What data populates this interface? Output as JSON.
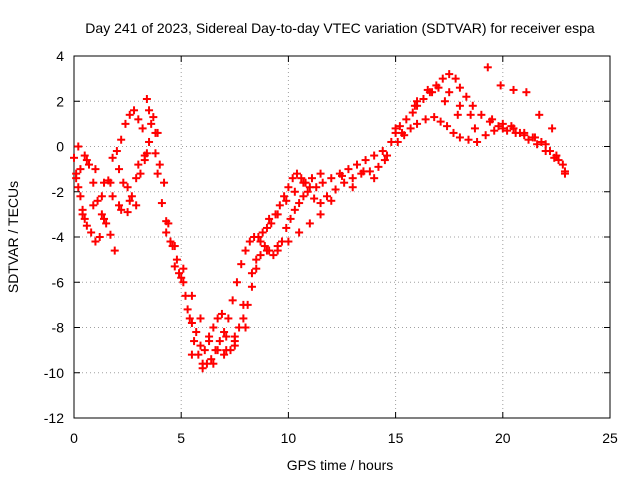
{
  "chart_data": {
    "type": "scatter",
    "title": "Day 241 of 2023, Sidereal Day-to-day VTEC variation (SDTVAR) for receiver espa",
    "xlabel": "GPS time / hours",
    "ylabel": "SDTVAR / TECUs",
    "xlim": [
      0,
      25
    ],
    "ylim": [
      -12,
      4
    ],
    "xticks": [
      0,
      5,
      10,
      15,
      20,
      25
    ],
    "yticks": [
      -12,
      -10,
      -8,
      -6,
      -4,
      -2,
      0,
      2,
      4
    ],
    "grid": true,
    "legend": "none",
    "marker": "+",
    "color": "#ff0000",
    "series": [
      {
        "name": "SDTVAR",
        "x": [
          0.0,
          0.1,
          0.2,
          0.3,
          0.4,
          0.5,
          0.6,
          0.8,
          1.0,
          1.2,
          1.4,
          1.6,
          1.8,
          2.0,
          2.2,
          2.4,
          2.6,
          2.8,
          3.0,
          3.2,
          3.4,
          3.6,
          3.8,
          4.0,
          4.2,
          4.4,
          4.6,
          4.8,
          5.0,
          5.2,
          5.4,
          5.6,
          5.8,
          6.0,
          6.2,
          6.4,
          6.6,
          6.8,
          7.0,
          7.2,
          7.4,
          7.6,
          7.8,
          8.0,
          8.2,
          8.4,
          8.6,
          8.8,
          9.0,
          9.2,
          9.4,
          9.6,
          9.8,
          10.0,
          10.2,
          10.4,
          10.6,
          10.8,
          11.0,
          11.3,
          11.6,
          12.0,
          12.4,
          12.8,
          13.2,
          13.6,
          14.0,
          14.4,
          14.8,
          15.0,
          15.2,
          15.5,
          15.8,
          16.0,
          16.3,
          16.6,
          16.9,
          17.2,
          17.5,
          17.8,
          18.0,
          18.3,
          18.6,
          19.0,
          19.4,
          19.8,
          20.2,
          20.6,
          21.0,
          21.4,
          21.8,
          22.2,
          22.6,
          22.9,
          0.1,
          0.3,
          0.5,
          0.7,
          0.9,
          1.1,
          1.3,
          1.5,
          1.7,
          1.9,
          2.1,
          2.3,
          2.5,
          2.7,
          2.9,
          3.1,
          3.3,
          3.5,
          3.7,
          3.9,
          4.1,
          4.3,
          4.5,
          4.7,
          4.9,
          5.1,
          5.3,
          5.5,
          5.7,
          5.9,
          6.1,
          6.3,
          6.5,
          6.7,
          6.9,
          7.1,
          7.3,
          7.5,
          7.7,
          7.9,
          8.1,
          8.3,
          8.5,
          8.7,
          8.9,
          9.1,
          9.3,
          9.5,
          9.7,
          9.9,
          10.1,
          10.3,
          10.5,
          10.7,
          10.9,
          11.2,
          11.5,
          11.8,
          12.2,
          12.6,
          13.0,
          13.4,
          13.8,
          14.2,
          14.6,
          15.1,
          15.4,
          15.7,
          16.0,
          16.4,
          16.8,
          17.1,
          17.4,
          17.7,
          18.0,
          18.4,
          18.8,
          19.2,
          19.6,
          20.0,
          20.4,
          20.8,
          21.2,
          21.6,
          22.0,
          22.4,
          22.8,
          0.2,
          0.6,
          1.0,
          1.4,
          1.8,
          2.2,
          2.6,
          3.0,
          3.4,
          3.8,
          5.5,
          6.0,
          6.5,
          7.0,
          7.5,
          8.0,
          8.5,
          9.0,
          9.5,
          10.0,
          10.5,
          11.0,
          11.5,
          12.0,
          13.0,
          14.0,
          15.0,
          16.0,
          16.5,
          17.0,
          17.5,
          18.0,
          18.5,
          19.5,
          20.0,
          20.5,
          21.0,
          21.5,
          22.0,
          22.5,
          0.4,
          0.9,
          1.3,
          1.7,
          2.1,
          2.5,
          2.9,
          3.3,
          3.5,
          3.9,
          4.3,
          4.7,
          5.1,
          5.5,
          5.9,
          6.3,
          6.7,
          7.1,
          7.5,
          7.9,
          8.3,
          8.7,
          9.1,
          9.5,
          9.9,
          10.3,
          10.7,
          11.1,
          11.5,
          12.5,
          13.5,
          14.5,
          15.3,
          15.9,
          16.7,
          17.3,
          17.9,
          18.7,
          19.3,
          19.9,
          20.5,
          21.1,
          21.7,
          22.3,
          22.9
        ],
        "y": [
          -0.5,
          -1.2,
          -1.8,
          -2.2,
          -2.8,
          -3.2,
          -3.5,
          -3.8,
          -4.2,
          -4.0,
          -3.2,
          -1.5,
          -0.5,
          -0.2,
          0.3,
          1.0,
          1.4,
          1.6,
          1.2,
          0.8,
          2.1,
          1.0,
          -0.3,
          -0.8,
          -1.6,
          -3.4,
          -4.4,
          -5.0,
          -5.8,
          -6.6,
          -7.6,
          -8.6,
          -9.2,
          -9.8,
          -9.6,
          -9.4,
          -9.0,
          -8.6,
          -8.2,
          -7.6,
          -6.8,
          -6.0,
          -5.2,
          -4.6,
          -4.2,
          -4.0,
          -4.0,
          -3.8,
          -3.6,
          -3.4,
          -3.0,
          -2.6,
          -2.2,
          -1.8,
          -1.4,
          -1.2,
          -1.4,
          -1.6,
          -1.8,
          -1.8,
          -1.6,
          -1.4,
          -1.2,
          -1.0,
          -0.8,
          -0.6,
          -0.4,
          -0.2,
          0.2,
          0.6,
          0.9,
          1.2,
          1.5,
          1.8,
          2.1,
          2.4,
          2.7,
          3.0,
          3.2,
          3.0,
          2.6,
          2.2,
          1.8,
          1.4,
          1.1,
          0.9,
          0.7,
          0.6,
          0.5,
          0.4,
          0.2,
          -0.2,
          -0.6,
          -1.1,
          -1.4,
          -1.0,
          -0.4,
          -0.8,
          -1.6,
          -2.4,
          -3.0,
          -3.4,
          -3.9,
          -4.6,
          -1.0,
          -1.6,
          -1.8,
          -2.2,
          -2.6,
          -1.2,
          -0.6,
          0.2,
          1.3,
          0.6,
          -2.5,
          -3.3,
          -4.2,
          -5.3,
          -5.6,
          -6.0,
          -7.2,
          -7.8,
          -8.2,
          -8.8,
          -9.0,
          -8.6,
          -8.0,
          -7.6,
          -7.4,
          -8.4,
          -9.0,
          -8.6,
          -8.0,
          -7.6,
          -7.0,
          -6.2,
          -5.4,
          -4.8,
          -4.4,
          -4.6,
          -4.8,
          -4.6,
          -4.2,
          -3.6,
          -3.2,
          -2.8,
          -2.5,
          -2.2,
          -2.0,
          -2.3,
          -2.5,
          -2.2,
          -1.9,
          -1.6,
          -1.4,
          -1.2,
          -1.1,
          -0.9,
          -0.4,
          0.2,
          0.5,
          0.8,
          1.0,
          1.2,
          1.3,
          1.1,
          0.9,
          0.6,
          0.4,
          0.3,
          0.2,
          0.5,
          0.7,
          0.8,
          0.9,
          0.6,
          0.3,
          0.1,
          -0.2,
          -0.5,
          -0.8,
          0.0,
          -0.6,
          -1.0,
          -1.6,
          -2.2,
          -2.8,
          -2.4,
          -0.8,
          -0.3,
          0.6,
          -9.2,
          -9.6,
          -9.6,
          -9.2,
          -8.8,
          -8.0,
          -5.0,
          -4.6,
          -4.4,
          -4.2,
          -3.8,
          -3.4,
          -3.0,
          -2.4,
          -1.8,
          -1.4,
          0.8,
          2.0,
          2.5,
          2.6,
          2.4,
          1.8,
          1.4,
          1.2,
          1.0,
          0.8,
          0.6,
          0.4,
          0.1,
          -0.4,
          -3.0,
          -2.6,
          -2.2,
          -1.6,
          -2.6,
          -2.9,
          -1.4,
          -0.4,
          1.6,
          -1.2,
          -3.8,
          -4.4,
          -5.4,
          -6.6,
          -7.6,
          -8.4,
          -9.0,
          -9.0,
          -8.4,
          -7.0,
          -5.6,
          -4.2,
          -3.2,
          -3.0,
          -2.4,
          -2.0,
          -1.6,
          -1.4,
          -1.2,
          -1.3,
          -1.1,
          -0.6,
          0.6,
          1.8,
          2.4,
          2.0,
          1.4,
          0.8,
          3.5,
          2.7,
          2.5,
          2.4,
          1.4,
          0.8,
          -1.2
        ]
      }
    ]
  }
}
